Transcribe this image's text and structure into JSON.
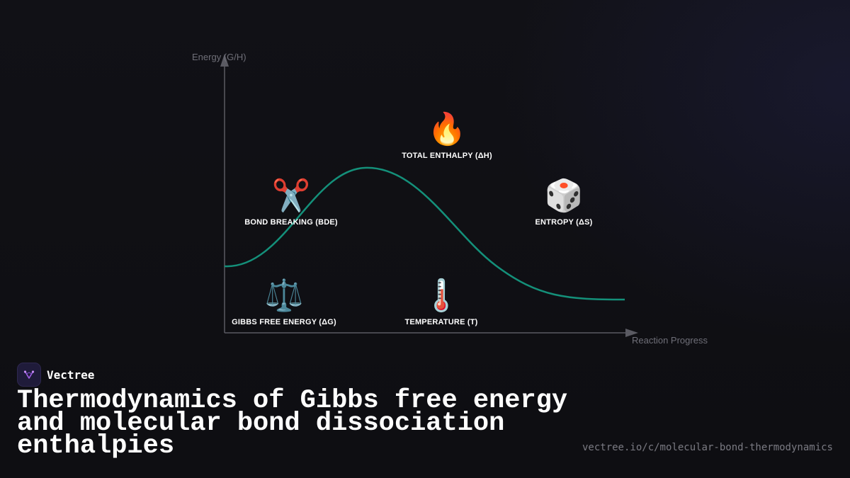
{
  "diagram": {
    "y_axis_label": "Energy (G/H)",
    "x_axis_label": "Reaction Progress",
    "curve_color": "#14907a",
    "axis_color": "#5a5a62",
    "nodes": {
      "enthalpy": {
        "icon": "fire-icon",
        "glyph": "🔥",
        "label": "TOTAL ENTHALPY (ΔH)"
      },
      "bde": {
        "icon": "scissors-icon",
        "glyph": "✂️",
        "label": "BOND BREAKING (BDE)"
      },
      "entropy": {
        "icon": "dice-icon",
        "glyph": "🎲",
        "label": "ENTROPY (ΔS)"
      },
      "gibbs": {
        "icon": "scales-icon",
        "glyph": "⚖️",
        "label": "GIBBS FREE ENERGY (ΔG)"
      },
      "temperature": {
        "icon": "thermometer-icon",
        "glyph": "🌡️",
        "label": "TEMPERATURE (T)"
      }
    }
  },
  "brand": {
    "name": "Vectree",
    "logo_icon": "vectree-logo-icon",
    "logo_color": "#a35ee8"
  },
  "title": "Thermodynamics of Gibbs free energy and molecular bond dissociation enthalpies",
  "url": "vectree.io/c/molecular-bond-thermodynamics"
}
